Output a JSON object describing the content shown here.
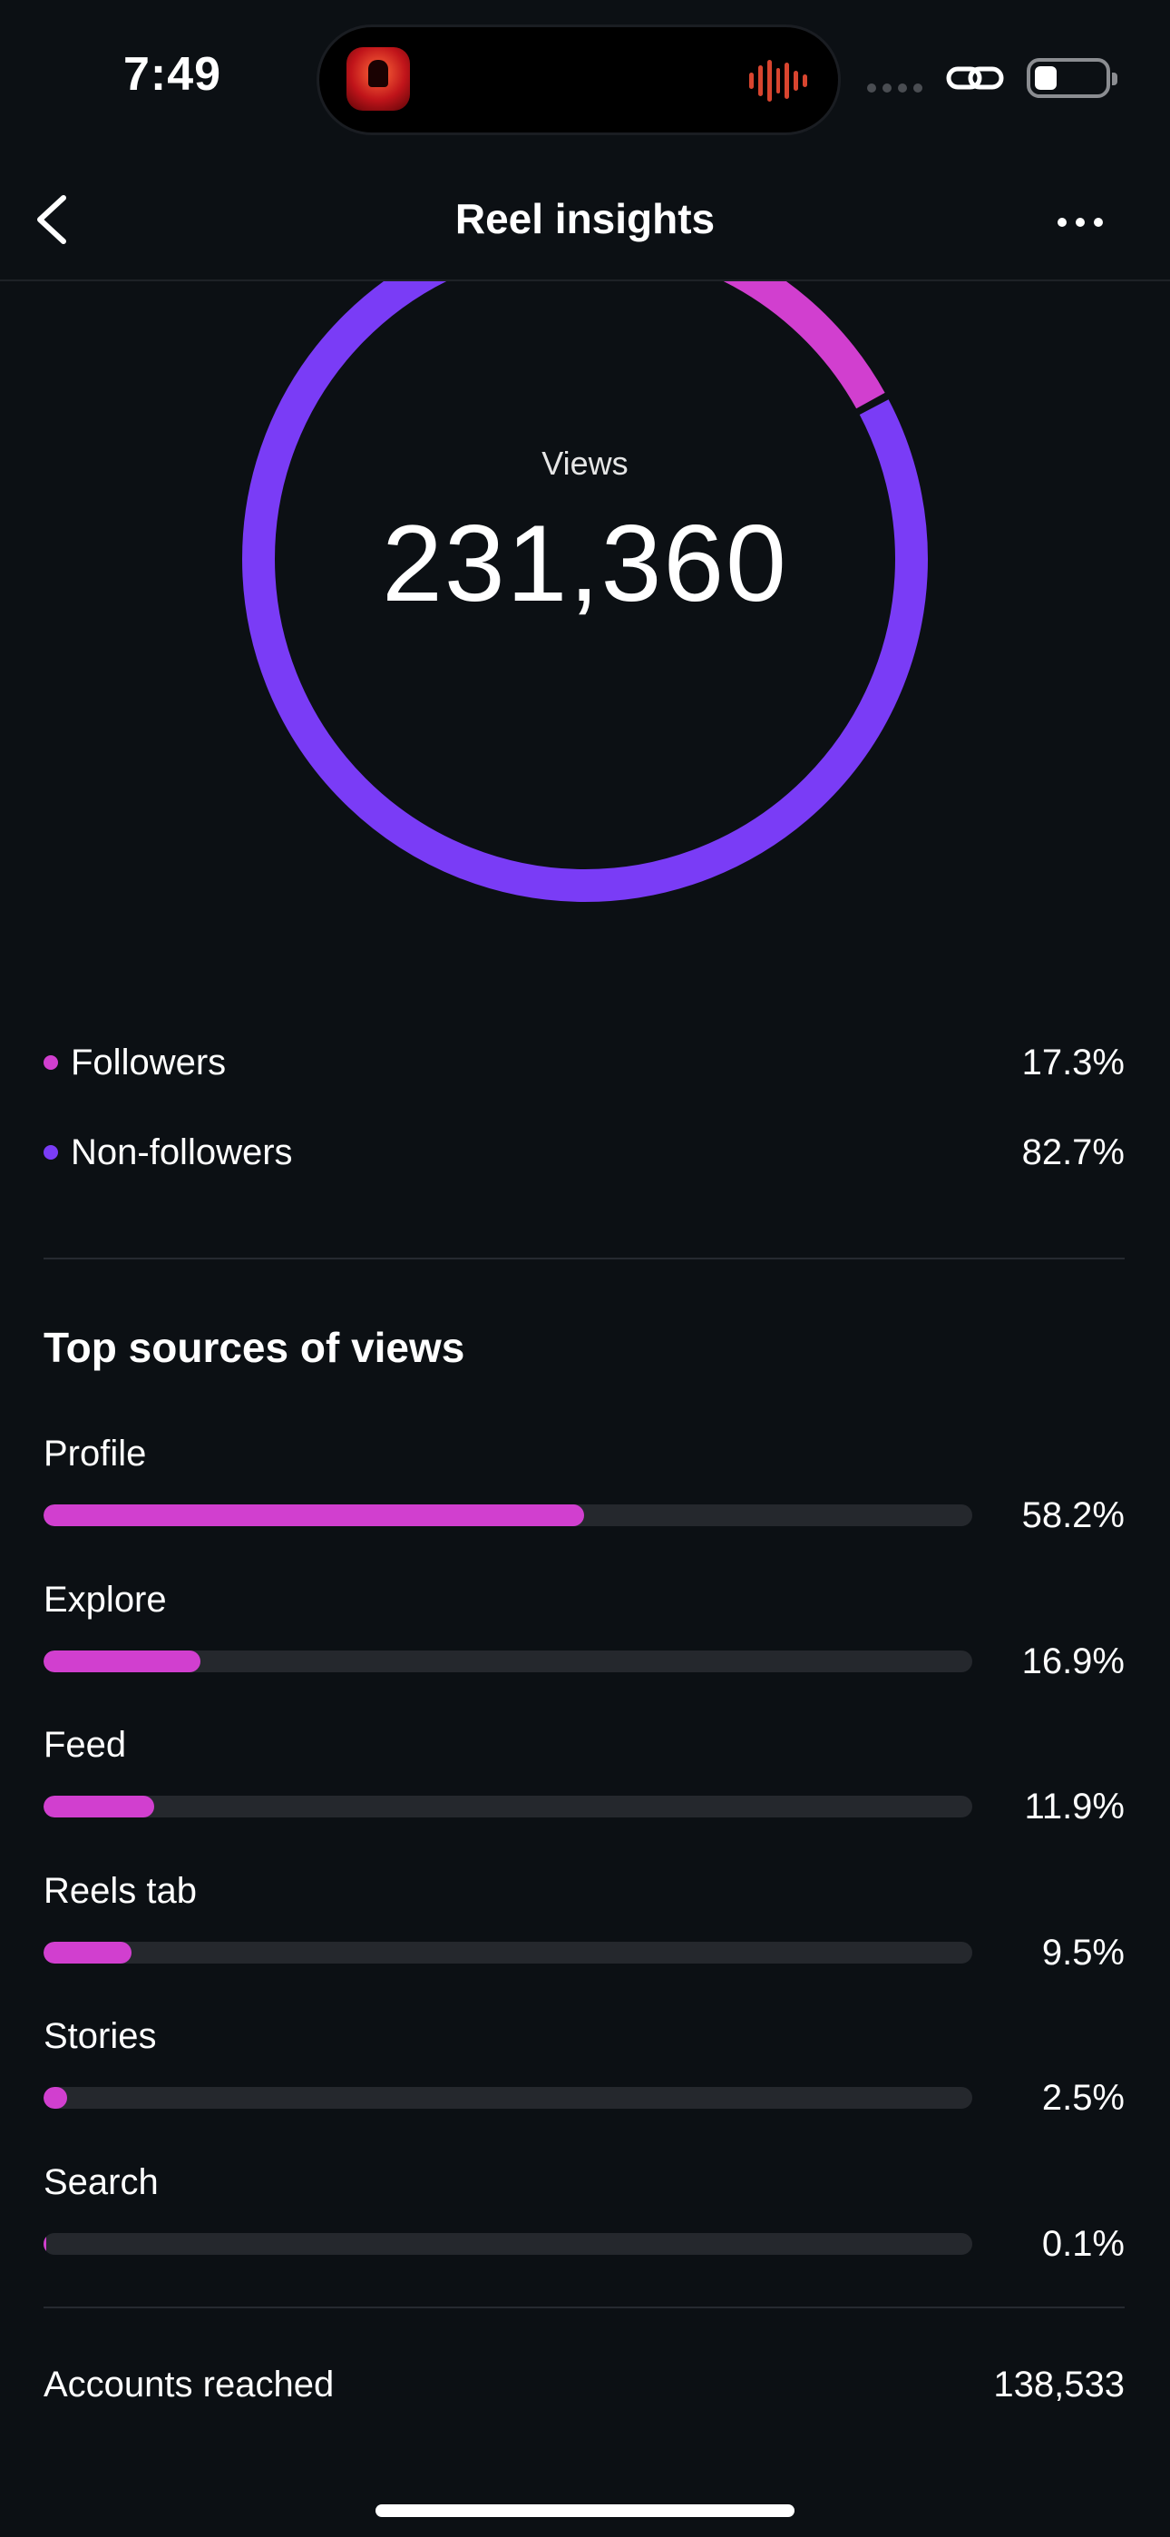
{
  "status_bar": {
    "time": "7:49"
  },
  "header": {
    "title": "Reel insights"
  },
  "views": {
    "label": "Views",
    "value": "231,360",
    "followers_share": 17.3,
    "non_followers_share": 82.7
  },
  "colors": {
    "followers": "#d13fcf",
    "non_followers": "#7a3cf6",
    "background": "#0c1014",
    "track": "#25282d"
  },
  "legend": [
    {
      "label": "Followers",
      "value": "17.3%"
    },
    {
      "label": "Non-followers",
      "value": "82.7%"
    }
  ],
  "sources": {
    "title": "Top sources of views",
    "items": [
      {
        "label": "Profile",
        "value": "58.2%",
        "percent": 58.2
      },
      {
        "label": "Explore",
        "value": "16.9%",
        "percent": 16.9
      },
      {
        "label": "Feed",
        "value": "11.9%",
        "percent": 11.9
      },
      {
        "label": "Reels tab",
        "value": "9.5%",
        "percent": 9.5
      },
      {
        "label": "Stories",
        "value": "2.5%",
        "percent": 2.5
      },
      {
        "label": "Search",
        "value": "0.1%",
        "percent": 0.1
      }
    ]
  },
  "reach": {
    "label": "Accounts reached",
    "value": "138,533"
  }
}
